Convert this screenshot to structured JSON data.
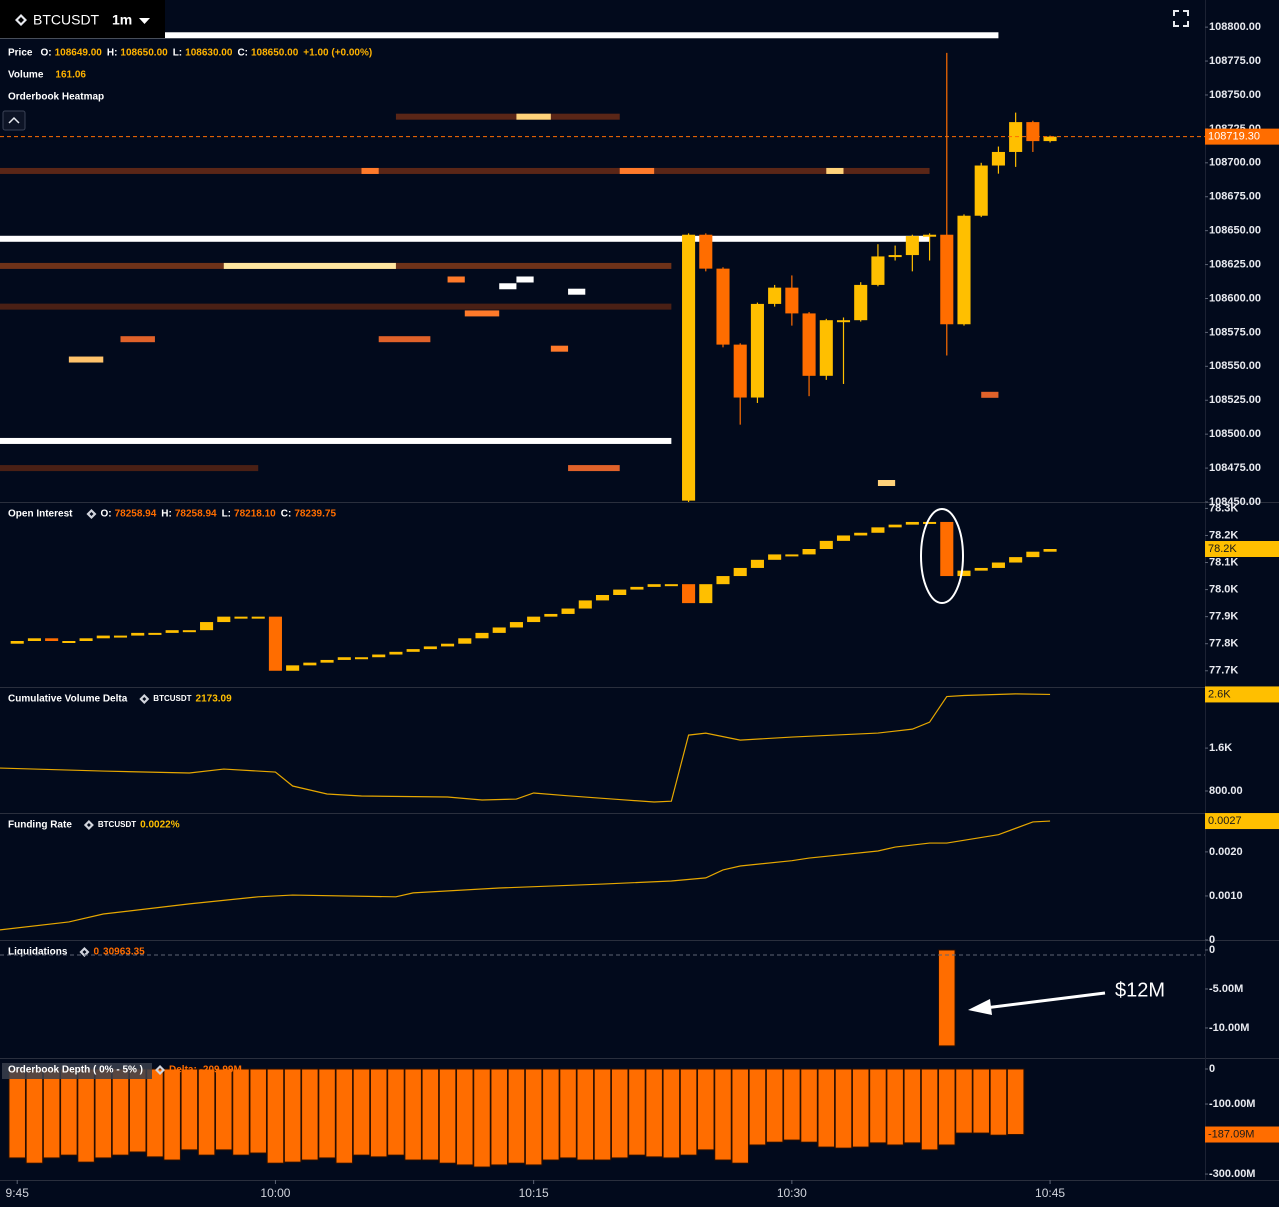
{
  "header": {
    "symbol": "BTCUSDT",
    "interval": "1m"
  },
  "time_axis": {
    "xlim": [
      "9:44",
      "10:54"
    ],
    "xticks": [
      "9:45",
      "10:00",
      "10:15",
      "10:30",
      "10:45"
    ]
  },
  "chart_data": [
    {
      "type": "candlestick",
      "legend_title": "Price",
      "legend": [
        {
          "key": "O:",
          "value": "108649.00"
        },
        {
          "key": "H:",
          "value": "108650.00"
        },
        {
          "key": "L:",
          "value": "108630.00"
        },
        {
          "key": "C:",
          "value": "108650.00"
        }
      ],
      "change": "+1.00 (+0.00%)",
      "volume_label": "Volume",
      "volume": "161.06",
      "heatmap_label": "Orderbook Heatmap",
      "last_label": "108719.30",
      "up_color": "#ffbf00",
      "down_color": "#ff6d00",
      "ylim": [
        108450,
        108820
      ],
      "yticks": [
        {
          "value": 108450,
          "label": "108450.00"
        },
        {
          "value": 108475,
          "label": "108475.00"
        },
        {
          "value": 108500,
          "label": "108500.00"
        },
        {
          "value": 108525,
          "label": "108525.00"
        },
        {
          "value": 108550,
          "label": "108550.00"
        },
        {
          "value": 108575,
          "label": "108575.00"
        },
        {
          "value": 108600,
          "label": "108600.00"
        },
        {
          "value": 108625,
          "label": "108625.00"
        },
        {
          "value": 108650,
          "label": "108650.00"
        },
        {
          "value": 108675,
          "label": "108675.00"
        },
        {
          "value": 108700,
          "label": "108700.00"
        },
        {
          "value": 108725,
          "label": "108725.00"
        },
        {
          "value": 108750,
          "label": "108750.00"
        },
        {
          "value": 108775,
          "label": "108775.00"
        },
        {
          "value": 108800,
          "label": "108800.00"
        }
      ],
      "x": [
        "10:24",
        "10:25",
        "10:26",
        "10:27",
        "10:28",
        "10:29",
        "10:30",
        "10:31",
        "10:32",
        "10:33",
        "10:34",
        "10:35",
        "10:36",
        "10:37",
        "10:38",
        "10:39",
        "10:40",
        "10:41",
        "10:42",
        "10:43",
        "10:44",
        "10:45"
      ],
      "open": [
        108451,
        108647,
        108622,
        108566,
        108527,
        108596,
        108608,
        108589,
        108543,
        108584,
        108584,
        108610,
        108631,
        108632,
        108646,
        108647,
        108581,
        108661,
        108698,
        108708,
        108730,
        108716
      ],
      "high": [
        108648,
        108648,
        108623,
        108567,
        108597,
        108610,
        108617,
        108590,
        108585,
        108586,
        108612,
        108640,
        108639,
        108647,
        108648,
        108781,
        108662,
        108700,
        108712,
        108737,
        108731,
        108720
      ],
      "low": [
        108450,
        108620,
        108564,
        108507,
        108523,
        108594,
        108580,
        108528,
        108540,
        108537,
        108583,
        108609,
        108628,
        108620,
        108628,
        108558,
        108580,
        108660,
        108692,
        108697,
        108708,
        108715
      ],
      "close": [
        108647,
        108622,
        108566,
        108527,
        108596,
        108608,
        108589,
        108543,
        108584,
        108584,
        108610,
        108631,
        108632,
        108646,
        108647,
        108581,
        108661,
        108698,
        108708,
        108730,
        108716,
        108719.3
      ],
      "heatmap": [
        {
          "price": 108794,
          "from": "9:44",
          "to": "10:42",
          "color": "#ffffff"
        },
        {
          "price": 108644,
          "from": "9:44",
          "to": "10:38",
          "color": "#ffffff"
        },
        {
          "price": 108495,
          "from": "9:44",
          "to": "10:23",
          "color": "#ffffff"
        },
        {
          "price": 108694,
          "from": "9:44",
          "to": "10:38",
          "color": "#5a2617"
        },
        {
          "price": 108624,
          "from": "9:44",
          "to": "10:23",
          "color": "#6e3219"
        },
        {
          "price": 108624,
          "from": "9:57",
          "to": "10:07",
          "color": "#ffe6a0"
        },
        {
          "price": 108594,
          "from": "9:44",
          "to": "10:23",
          "color": "#4a2015"
        },
        {
          "price": 108734,
          "from": "10:07",
          "to": "10:20",
          "color": "#5a2617"
        },
        {
          "price": 108734,
          "from": "10:14",
          "to": "10:16",
          "color": "#ffd27a"
        },
        {
          "price": 108555,
          "from": "9:48",
          "to": "9:50",
          "color": "#ffc36b"
        },
        {
          "price": 108570,
          "from": "9:51",
          "to": "9:53",
          "color": "#e0622a"
        },
        {
          "price": 108570,
          "from": "10:06",
          "to": "10:09",
          "color": "#e0622a"
        },
        {
          "price": 108614,
          "from": "10:10",
          "to": "10:11",
          "color": "#ff7a2a"
        },
        {
          "price": 108609,
          "from": "10:13",
          "to": "10:14",
          "color": "#ffffff"
        },
        {
          "price": 108614,
          "from": "10:14",
          "to": "10:15",
          "color": "#ffffff"
        },
        {
          "price": 108605,
          "from": "10:17",
          "to": "10:18",
          "color": "#ffffff"
        },
        {
          "price": 108589,
          "from": "10:11",
          "to": "10:13",
          "color": "#ff7a2a"
        },
        {
          "price": 108563,
          "from": "10:16",
          "to": "10:17",
          "color": "#ff7a2a"
        },
        {
          "price": 108475,
          "from": "9:44",
          "to": "9:59",
          "color": "#4a2015"
        },
        {
          "price": 108475,
          "from": "10:17",
          "to": "10:20",
          "color": "#e0622a"
        },
        {
          "price": 108529,
          "from": "10:41",
          "to": "10:42",
          "color": "#e0622a"
        },
        {
          "price": 108464,
          "from": "10:35",
          "to": "10:36",
          "color": "#ffd27a"
        },
        {
          "price": 108694,
          "from": "10:05",
          "to": "10:06",
          "color": "#ff7a2a"
        },
        {
          "price": 108694,
          "from": "10:20",
          "to": "10:22",
          "color": "#ff7a2a"
        },
        {
          "price": 108694,
          "from": "10:32",
          "to": "10:33",
          "color": "#ffd27a"
        }
      ]
    },
    {
      "type": "candlestick",
      "legend_title": "Open Interest",
      "legend": [
        {
          "key": "O:",
          "value": "78258.94"
        },
        {
          "key": "H:",
          "value": "78258.94"
        },
        {
          "key": "L:",
          "value": "78218.10"
        },
        {
          "key": "C:",
          "value": "78239.75"
        }
      ],
      "last_label": "78.2K",
      "up_color": "#ffbf00",
      "down_color": "#ff6d00",
      "ylim": [
        77640,
        78320
      ],
      "yticks": [
        {
          "value": 77700,
          "label": "77.7K"
        },
        {
          "value": 77800,
          "label": "77.8K"
        },
        {
          "value": 77900,
          "label": "77.9K"
        },
        {
          "value": 78000,
          "label": "78.0K"
        },
        {
          "value": 78100,
          "label": "78.1K"
        },
        {
          "value": 78200,
          "label": "78.2K"
        },
        {
          "value": 78300,
          "label": "78.3K"
        }
      ],
      "x": [
        "9:45",
        "9:46",
        "9:47",
        "9:48",
        "9:49",
        "9:50",
        "9:51",
        "9:52",
        "9:53",
        "9:54",
        "9:55",
        "9:56",
        "9:57",
        "9:58",
        "9:59",
        "10:00",
        "10:01",
        "10:02",
        "10:03",
        "10:04",
        "10:05",
        "10:06",
        "10:07",
        "10:08",
        "10:09",
        "10:10",
        "10:11",
        "10:12",
        "10:13",
        "10:14",
        "10:15",
        "10:16",
        "10:17",
        "10:18",
        "10:19",
        "10:20",
        "10:21",
        "10:22",
        "10:23",
        "10:24",
        "10:25",
        "10:26",
        "10:27",
        "10:28",
        "10:29",
        "10:30",
        "10:31",
        "10:32",
        "10:33",
        "10:34",
        "10:35",
        "10:36",
        "10:37",
        "10:38",
        "10:39",
        "10:40",
        "10:41",
        "10:42",
        "10:43",
        "10:44",
        "10:45"
      ],
      "open": [
        77800,
        77810,
        77820,
        77810,
        77810,
        77820,
        77830,
        77830,
        77840,
        77840,
        77850,
        77850,
        77880,
        77900,
        77900,
        77900,
        77700,
        77720,
        77730,
        77740,
        77750,
        77750,
        77760,
        77770,
        77780,
        77790,
        77800,
        77820,
        77840,
        77860,
        77880,
        77900,
        77910,
        77930,
        77960,
        77980,
        78000,
        78010,
        78020,
        78020,
        77950,
        78020,
        78050,
        78080,
        78110,
        78130,
        78130,
        78150,
        78180,
        78200,
        78210,
        78230,
        78240,
        78250,
        78250,
        78050,
        78070,
        78080,
        78100,
        78120,
        78140
      ],
      "close": [
        77810,
        77820,
        77810,
        77810,
        77820,
        77830,
        77830,
        77840,
        77840,
        77850,
        77850,
        77880,
        77900,
        77900,
        77900,
        77700,
        77720,
        77730,
        77740,
        77750,
        77750,
        77760,
        77770,
        77780,
        77790,
        77800,
        77820,
        77840,
        77860,
        77880,
        77900,
        77910,
        77930,
        77960,
        77980,
        78000,
        78010,
        78020,
        78020,
        77950,
        78020,
        78050,
        78080,
        78110,
        78130,
        78130,
        78150,
        78180,
        78200,
        78210,
        78230,
        78240,
        78250,
        78250,
        78050,
        78070,
        78080,
        78100,
        78120,
        78140,
        78150
      ]
    },
    {
      "type": "line",
      "legend_title": "Cumulative Volume Delta",
      "symbol": "BTCUSDT",
      "legend_value": "2173.09",
      "last_label": "2.6K",
      "color": "#e6a700",
      "ylim": [
        390,
        2720
      ],
      "yticks": [
        {
          "value": 800,
          "label": "800.00"
        },
        {
          "value": 1600,
          "label": "1.6K"
        }
      ],
      "x": [
        "9:44",
        "9:50",
        "9:55",
        "9:57",
        "10:00",
        "10:01",
        "10:03",
        "10:05",
        "10:10",
        "10:12",
        "10:14",
        "10:15",
        "10:17",
        "10:20",
        "10:22",
        "10:23",
        "10:24",
        "10:25",
        "10:27",
        "10:30",
        "10:35",
        "10:37",
        "10:38",
        "10:39",
        "10:40",
        "10:43",
        "10:45"
      ],
      "values": [
        1228,
        1172,
        1135,
        1209,
        1153,
        893,
        744,
        707,
        688,
        633,
        650,
        763,
        710,
        640,
        595,
        610,
        1842,
        1879,
        1749,
        1805,
        1880,
        1953,
        2083,
        2560,
        2580,
        2610,
        2600
      ]
    },
    {
      "type": "line",
      "legend_title": "Funding Rate",
      "symbol": "BTCUSDT",
      "legend_value": "0.0022%",
      "last_label": "0.0027",
      "color": "#e6a700",
      "ylim": [
        0,
        0.00286
      ],
      "yticks": [
        0,
        {
          "value": 0.001,
          "label": "0.0010"
        },
        {
          "value": 0.002,
          "label": "0.0020"
        }
      ],
      "x": [
        "9:44",
        "9:48",
        "9:50",
        "9:55",
        "9:59",
        "10:01",
        "10:07",
        "10:08",
        "10:13",
        "10:19",
        "10:23",
        "10:25",
        "10:26",
        "10:27",
        "10:30",
        "10:31",
        "10:35",
        "10:36",
        "10:38",
        "10:39",
        "10:42",
        "10:44",
        "10:45"
      ],
      "values": [
        0.00023,
        0.00041,
        0.00059,
        0.00082,
        0.00098,
        0.00102,
        0.00098,
        0.00107,
        0.00118,
        0.00127,
        0.00134,
        0.00141,
        0.00159,
        0.00168,
        0.0018,
        0.00186,
        0.00202,
        0.00211,
        0.0022,
        0.0022,
        0.00239,
        0.00268,
        0.0027
      ]
    },
    {
      "type": "bar",
      "legend_title": "Liquidations",
      "legend_values": [
        "0",
        "30963.35"
      ],
      "annotation": "$12M",
      "color": "#ff6d00",
      "ylim": [
        -13850000,
        1150000
      ],
      "yticks": [
        0,
        {
          "value": -5000000,
          "label": "-5.00M"
        },
        {
          "value": -10000000,
          "label": "-10.00M"
        }
      ],
      "x": [
        "10:39"
      ],
      "values": [
        -12300000
      ]
    },
    {
      "type": "bar",
      "legend_title": "Orderbook Depth ( 0% - 5% )",
      "legend_value": "Delta: -209.99M",
      "last_label": "-187.09M",
      "color": "#ff6d00",
      "ylim": [
        -317000000,
        28600000
      ],
      "yticks": [
        0,
        {
          "value": -100000000,
          "label": "-100.00M"
        },
        {
          "value": -300000000,
          "label": "-300.00M"
        }
      ],
      "x": [
        "9:45",
        "9:46",
        "9:47",
        "9:48",
        "9:49",
        "9:50",
        "9:51",
        "9:52",
        "9:53",
        "9:54",
        "9:55",
        "9:56",
        "9:57",
        "9:58",
        "9:59",
        "10:00",
        "10:01",
        "10:02",
        "10:03",
        "10:04",
        "10:05",
        "10:06",
        "10:07",
        "10:08",
        "10:09",
        "10:10",
        "10:11",
        "10:12",
        "10:13",
        "10:14",
        "10:15",
        "10:16",
        "10:17",
        "10:18",
        "10:19",
        "10:20",
        "10:21",
        "10:22",
        "10:23",
        "10:24",
        "10:25",
        "10:26",
        "10:27",
        "10:28",
        "10:29",
        "10:30",
        "10:31",
        "10:32",
        "10:33",
        "10:34",
        "10:35",
        "10:36",
        "10:37",
        "10:38",
        "10:39",
        "10:40",
        "10:41",
        "10:42",
        "10:43"
      ],
      "values": [
        -254000000,
        -269000000,
        -254000000,
        -246000000,
        -266000000,
        -254000000,
        -246000000,
        -237000000,
        -251000000,
        -260000000,
        -231000000,
        -246000000,
        -231000000,
        -246000000,
        -240000000,
        -269000000,
        -266000000,
        -260000000,
        -254000000,
        -269000000,
        -246000000,
        -251000000,
        -246000000,
        -260000000,
        -260000000,
        -269000000,
        -274000000,
        -280000000,
        -274000000,
        -269000000,
        -274000000,
        -260000000,
        -254000000,
        -260000000,
        -260000000,
        -254000000,
        -246000000,
        -251000000,
        -254000000,
        -246000000,
        -231000000,
        -260000000,
        -269000000,
        -217000000,
        -209000000,
        -203000000,
        -209000000,
        -223000000,
        -226000000,
        -223000000,
        -211000000,
        -217000000,
        -211000000,
        -231000000,
        -217000000,
        -183000000,
        -183000000,
        -189000000,
        -187090000
      ]
    }
  ]
}
